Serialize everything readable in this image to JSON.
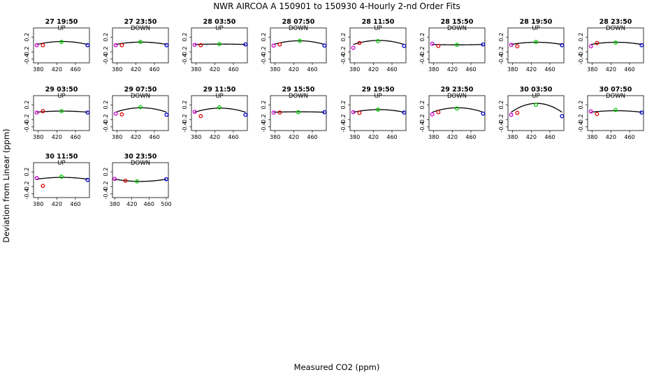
{
  "header": {
    "title": "NWR   AIRCOA A   150901 to 150930   4-Hourly 2-nd Order Fits"
  },
  "axes": {
    "xlabel": "Measured CO2 (ppm)",
    "ylabel": "Deviation from Linear (ppm)"
  },
  "colors": {
    "curve": "#000000",
    "first_point": "#cc00cc",
    "low_points": "#dd0000",
    "mid_point": "#00cc00",
    "last_point": "#0000cc"
  },
  "chart_data": {
    "type": "scatter",
    "xlabel": "Measured CO2 (ppm)",
    "ylabel": "Deviation from Linear (ppm)",
    "ylim": [
      -0.5,
      0.45
    ],
    "yticks": [
      "0.2",
      "-0.2",
      "-0.4"
    ],
    "panels": [
      {
        "title": "27 19:50",
        "dir": "UP",
        "xlim": [
          370,
          490
        ],
        "xticks": [
          "380",
          "420",
          "460"
        ],
        "curve": [
          0,
          0.08,
          0
        ],
        "points": [
          [
            377,
            -0.02
          ],
          [
            390,
            -0.02
          ],
          [
            430,
            0.07
          ],
          [
            486,
            -0.02
          ]
        ]
      },
      {
        "title": "27 23:50",
        "dir": "DOWN",
        "xlim": [
          370,
          490
        ],
        "xticks": [
          "380",
          "420",
          "460"
        ],
        "curve": [
          0,
          0.065,
          0
        ],
        "points": [
          [
            377,
            -0.02
          ],
          [
            390,
            -0.02
          ],
          [
            430,
            0.07
          ],
          [
            486,
            -0.02
          ]
        ]
      },
      {
        "title": "28 03:50",
        "dir": "UP",
        "xlim": [
          370,
          490
        ],
        "xticks": [
          "380",
          "420",
          "460"
        ],
        "curve": [
          0,
          0.01,
          0
        ],
        "points": [
          [
            377,
            -0.01
          ],
          [
            390,
            -0.02
          ],
          [
            430,
            0.01
          ],
          [
            486,
            0.0
          ]
        ]
      },
      {
        "title": "28 07:50",
        "dir": "DOWN",
        "xlim": [
          370,
          490
        ],
        "xticks": [
          "380",
          "420",
          "460"
        ],
        "curve": [
          0,
          0.1,
          0
        ],
        "points": [
          [
            377,
            -0.03
          ],
          [
            390,
            0.0
          ],
          [
            433,
            0.1
          ],
          [
            486,
            -0.03
          ]
        ]
      },
      {
        "title": "28 11:50",
        "dir": "UP",
        "xlim": [
          370,
          490
        ],
        "xticks": [
          "380",
          "420",
          "460"
        ],
        "curve": [
          0,
          0.11,
          0
        ],
        "points": [
          [
            377,
            -0.09
          ],
          [
            390,
            0.04
          ],
          [
            430,
            0.09
          ],
          [
            486,
            -0.04
          ]
        ]
      },
      {
        "title": "28 15:50",
        "dir": "DOWN",
        "xlim": [
          370,
          490
        ],
        "xticks": [
          "380",
          "420",
          "460"
        ],
        "curve": [
          0,
          -0.01,
          0
        ],
        "points": [
          [
            377,
            0.02
          ],
          [
            390,
            -0.04
          ],
          [
            430,
            -0.01
          ],
          [
            486,
            0.0
          ]
        ]
      },
      {
        "title": "28 19:50",
        "dir": "UP",
        "xlim": [
          370,
          490
        ],
        "xticks": [
          "380",
          "420",
          "460"
        ],
        "curve": [
          0,
          0.06,
          0
        ],
        "points": [
          [
            377,
            -0.01
          ],
          [
            390,
            -0.05
          ],
          [
            430,
            0.07
          ],
          [
            486,
            -0.02
          ]
        ]
      },
      {
        "title": "28 23:50",
        "dir": "DOWN",
        "xlim": [
          370,
          490
        ],
        "xticks": [
          "380",
          "420",
          "460"
        ],
        "curve": [
          0,
          0.06,
          0
        ],
        "points": [
          [
            377,
            -0.05
          ],
          [
            390,
            0.04
          ],
          [
            430,
            0.05
          ],
          [
            486,
            -0.02
          ]
        ]
      },
      {
        "title": "29 03:50",
        "dir": "UP",
        "xlim": [
          370,
          490
        ],
        "xticks": [
          "380",
          "420",
          "460"
        ],
        "curve": [
          0,
          0.03,
          0
        ],
        "points": [
          [
            377,
            -0.01
          ],
          [
            390,
            0.03
          ],
          [
            430,
            0.03
          ],
          [
            486,
            -0.01
          ]
        ]
      },
      {
        "title": "29 07:50",
        "dir": "DOWN",
        "xlim": [
          370,
          490
        ],
        "xticks": [
          "380",
          "420",
          "460"
        ],
        "curve": [
          0,
          0.12,
          0
        ],
        "points": [
          [
            377,
            -0.04
          ],
          [
            390,
            -0.06
          ],
          [
            430,
            0.14
          ],
          [
            486,
            -0.07
          ]
        ]
      },
      {
        "title": "29 11:50",
        "dir": "UP",
        "xlim": [
          370,
          490
        ],
        "xticks": [
          "380",
          "420",
          "460"
        ],
        "curve": [
          0,
          0.11,
          0
        ],
        "points": [
          [
            377,
            0.01
          ],
          [
            390,
            -0.11
          ],
          [
            430,
            0.13
          ],
          [
            486,
            -0.07
          ]
        ]
      },
      {
        "title": "29 15:50",
        "dir": "DOWN",
        "xlim": [
          370,
          490
        ],
        "xticks": [
          "380",
          "420",
          "460"
        ],
        "curve": [
          0,
          0.01,
          0
        ],
        "points": [
          [
            377,
            -0.01
          ],
          [
            390,
            -0.01
          ],
          [
            430,
            0.0
          ],
          [
            486,
            0.0
          ]
        ]
      },
      {
        "title": "29 19:50",
        "dir": "UP",
        "xlim": [
          370,
          490
        ],
        "xticks": [
          "380",
          "420",
          "460"
        ],
        "curve": [
          0,
          0.07,
          0
        ],
        "points": [
          [
            377,
            0.0
          ],
          [
            390,
            -0.02
          ],
          [
            430,
            0.07
          ],
          [
            486,
            -0.01
          ]
        ]
      },
      {
        "title": "29 23:50",
        "dir": "DOWN",
        "xlim": [
          370,
          490
        ],
        "xticks": [
          "380",
          "420",
          "460"
        ],
        "curve": [
          0,
          0.12,
          0
        ],
        "points": [
          [
            377,
            -0.06
          ],
          [
            390,
            0.0
          ],
          [
            430,
            0.1
          ],
          [
            486,
            -0.04
          ]
        ]
      },
      {
        "title": "30 03:50",
        "dir": "UP",
        "xlim": [
          370,
          490
        ],
        "xticks": [
          "380",
          "420",
          "460"
        ],
        "curve": [
          0,
          0.24,
          0
        ],
        "points": [
          [
            377,
            -0.07
          ],
          [
            390,
            -0.02
          ],
          [
            430,
            0.2
          ],
          [
            486,
            -0.11
          ]
        ]
      },
      {
        "title": "30 07:50",
        "dir": "DOWN",
        "xlim": [
          370,
          490
        ],
        "xticks": [
          "380",
          "420",
          "460"
        ],
        "curve": [
          0,
          0.04,
          0
        ],
        "points": [
          [
            377,
            0.02
          ],
          [
            390,
            -0.05
          ],
          [
            430,
            0.06
          ],
          [
            486,
            -0.01
          ]
        ]
      },
      {
        "title": "30 11:50",
        "dir": "UP",
        "xlim": [
          370,
          490
        ],
        "xticks": [
          "380",
          "420",
          "460"
        ],
        "curve": [
          0,
          0.05,
          0
        ],
        "points": [
          [
            377,
            0.03
          ],
          [
            390,
            -0.18
          ],
          [
            430,
            0.07
          ],
          [
            486,
            -0.02
          ]
        ]
      },
      {
        "title": "30 23:50",
        "dir": "DOWN",
        "xlim": [
          375,
          505
        ],
        "xticks": [
          "380",
          "420",
          "460",
          "500"
        ],
        "curve": [
          0,
          -0.06,
          0
        ],
        "points": [
          [
            380,
            0.01
          ],
          [
            405,
            -0.04
          ],
          [
            432,
            -0.06
          ],
          [
            500,
            0.0
          ]
        ]
      }
    ]
  }
}
